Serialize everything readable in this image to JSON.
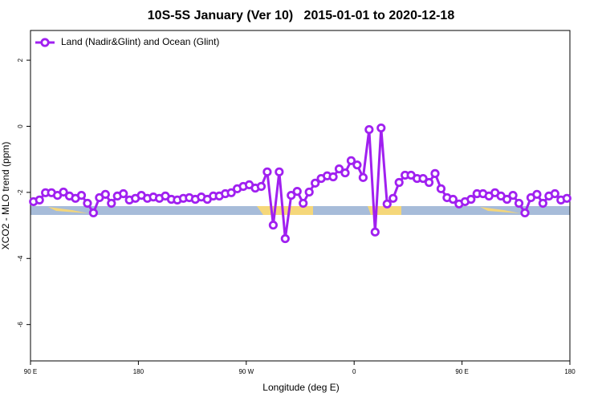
{
  "chart_data": {
    "type": "line",
    "title": "10S-5S January (Ver 10)   2015-01-01 to 2020-12-18",
    "xlabel": "Longitude (deg E)",
    "ylabel": "XCO2 - MLO trend (ppm)",
    "x": [
      92.5,
      97.5,
      102.5,
      107.5,
      112.5,
      117.5,
      122.5,
      127.5,
      132.5,
      137.5,
      142.5,
      147.5,
      152.5,
      157.5,
      162.5,
      167.5,
      172.5,
      177.5,
      182.5,
      187.5,
      192.5,
      197.5,
      202.5,
      207.5,
      212.5,
      217.5,
      222.5,
      227.5,
      232.5,
      237.5,
      242.5,
      247.5,
      252.5,
      257.5,
      262.5,
      267.5,
      272.5,
      277.5,
      282.5,
      287.5,
      292.5,
      297.5,
      302.5,
      307.5,
      312.5,
      317.5,
      322.5,
      327.5,
      332.5,
      337.5,
      342.5,
      347.5,
      352.5,
      357.5,
      362.5,
      367.5,
      372.5,
      377.5,
      382.5,
      387.5,
      392.5,
      397.5,
      402.5,
      407.5,
      412.5,
      417.5,
      422.5,
      427.5,
      432.5,
      437.5,
      442.5,
      447.5,
      452.5,
      457.5,
      462.5,
      467.5,
      472.5,
      477.5,
      482.5,
      487.5,
      492.5,
      497.5,
      502.5,
      507.5,
      512.5,
      517.5,
      522.5,
      527.5,
      532.5,
      537.5
    ],
    "series": [
      {
        "name": "Land (Nadir&Glint) and Ocean (Glint)",
        "color": "#a020f0",
        "values": [
          -2.28,
          -2.23,
          -2.01,
          -2.01,
          -2.09,
          -1.99,
          -2.11,
          -2.18,
          -2.09,
          -2.33,
          -2.62,
          -2.16,
          -2.06,
          -2.33,
          -2.11,
          -2.04,
          -2.23,
          -2.18,
          -2.09,
          -2.18,
          -2.14,
          -2.18,
          -2.11,
          -2.21,
          -2.23,
          -2.18,
          -2.16,
          -2.21,
          -2.14,
          -2.21,
          -2.11,
          -2.11,
          -2.04,
          -2.01,
          -1.89,
          -1.82,
          -1.77,
          -1.87,
          -1.82,
          -1.38,
          -2.99,
          -1.38,
          -3.4,
          -2.09,
          -1.97,
          -2.33,
          -1.99,
          -1.72,
          -1.58,
          -1.5,
          -1.53,
          -1.29,
          -1.41,
          -1.04,
          -1.17,
          -1.55,
          -0.1,
          -3.2,
          -0.05,
          -2.35,
          -2.18,
          -1.7,
          -1.48,
          -1.48,
          -1.58,
          -1.58,
          -1.7,
          -1.43,
          -1.89,
          -2.16,
          -2.21,
          -2.35,
          -2.28,
          -2.21,
          -2.04,
          -2.04,
          -2.11,
          -2.01,
          -2.11,
          -2.21,
          -2.09,
          -2.33,
          -2.62,
          -2.16,
          -2.06,
          -2.33,
          -2.11,
          -2.04,
          -2.23,
          -2.18
        ]
      }
    ],
    "xlim": [
      90,
      540
    ],
    "xticks": [
      {
        "value": 90,
        "label": "90 E"
      },
      {
        "value": 180,
        "label": "180"
      },
      {
        "value": 270,
        "label": "90 W"
      },
      {
        "value": 360,
        "label": "0"
      },
      {
        "value": 450,
        "label": "90 E"
      },
      {
        "value": 540,
        "label": "180"
      }
    ],
    "ylim": [
      -7.1,
      2.9
    ],
    "yticks": [
      -6,
      -4,
      -2,
      0,
      2
    ],
    "legend": "upper left"
  }
}
